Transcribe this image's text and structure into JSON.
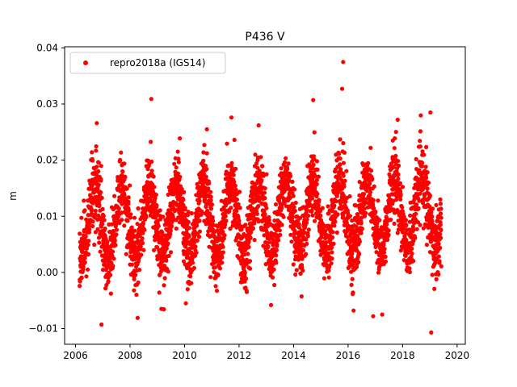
{
  "chart_data": {
    "type": "scatter",
    "title": "P436 V",
    "xlabel": "",
    "ylabel": "m",
    "xlim": [
      2005.6,
      2020.3
    ],
    "ylim": [
      -0.0128,
      0.0402
    ],
    "x_ticks": [
      "2006",
      "2008",
      "2010",
      "2012",
      "2014",
      "2016",
      "2018",
      "2020"
    ],
    "y_ticks": [
      "−0.01",
      "0.00",
      "0.01",
      "0.02",
      "0.03",
      "0.04"
    ],
    "grid": false,
    "legend": {
      "position": "top-left"
    },
    "marker_color": "#ff0000",
    "series": [
      {
        "name": "repro2018a (IGS14)",
        "x_range": [
          2006.15,
          2019.42
        ],
        "baseline_m": 0.0085,
        "scatter_sd_m": 0.0048,
        "notable_points": [
          {
            "x": 2015.82,
            "y": 0.0375
          },
          {
            "x": 2015.78,
            "y": 0.0327
          },
          {
            "x": 2008.78,
            "y": 0.0309
          },
          {
            "x": 2014.72,
            "y": 0.0307
          },
          {
            "x": 2019.02,
            "y": 0.0285
          },
          {
            "x": 2011.72,
            "y": 0.0276
          },
          {
            "x": 2017.82,
            "y": 0.0272
          },
          {
            "x": 2006.78,
            "y": 0.0266
          },
          {
            "x": 2010.82,
            "y": 0.0255
          },
          {
            "x": 2012.72,
            "y": 0.0262
          },
          {
            "x": 2006.95,
            "y": -0.0093
          },
          {
            "x": 2019.05,
            "y": -0.0107
          },
          {
            "x": 2008.28,
            "y": -0.0081
          },
          {
            "x": 2017.25,
            "y": -0.0075
          },
          {
            "x": 2016.2,
            "y": -0.0068
          },
          {
            "x": 2009.15,
            "y": -0.0065
          },
          {
            "x": 2010.05,
            "y": -0.0055
          },
          {
            "x": 2016.92,
            "y": -0.0078
          }
        ]
      }
    ]
  }
}
